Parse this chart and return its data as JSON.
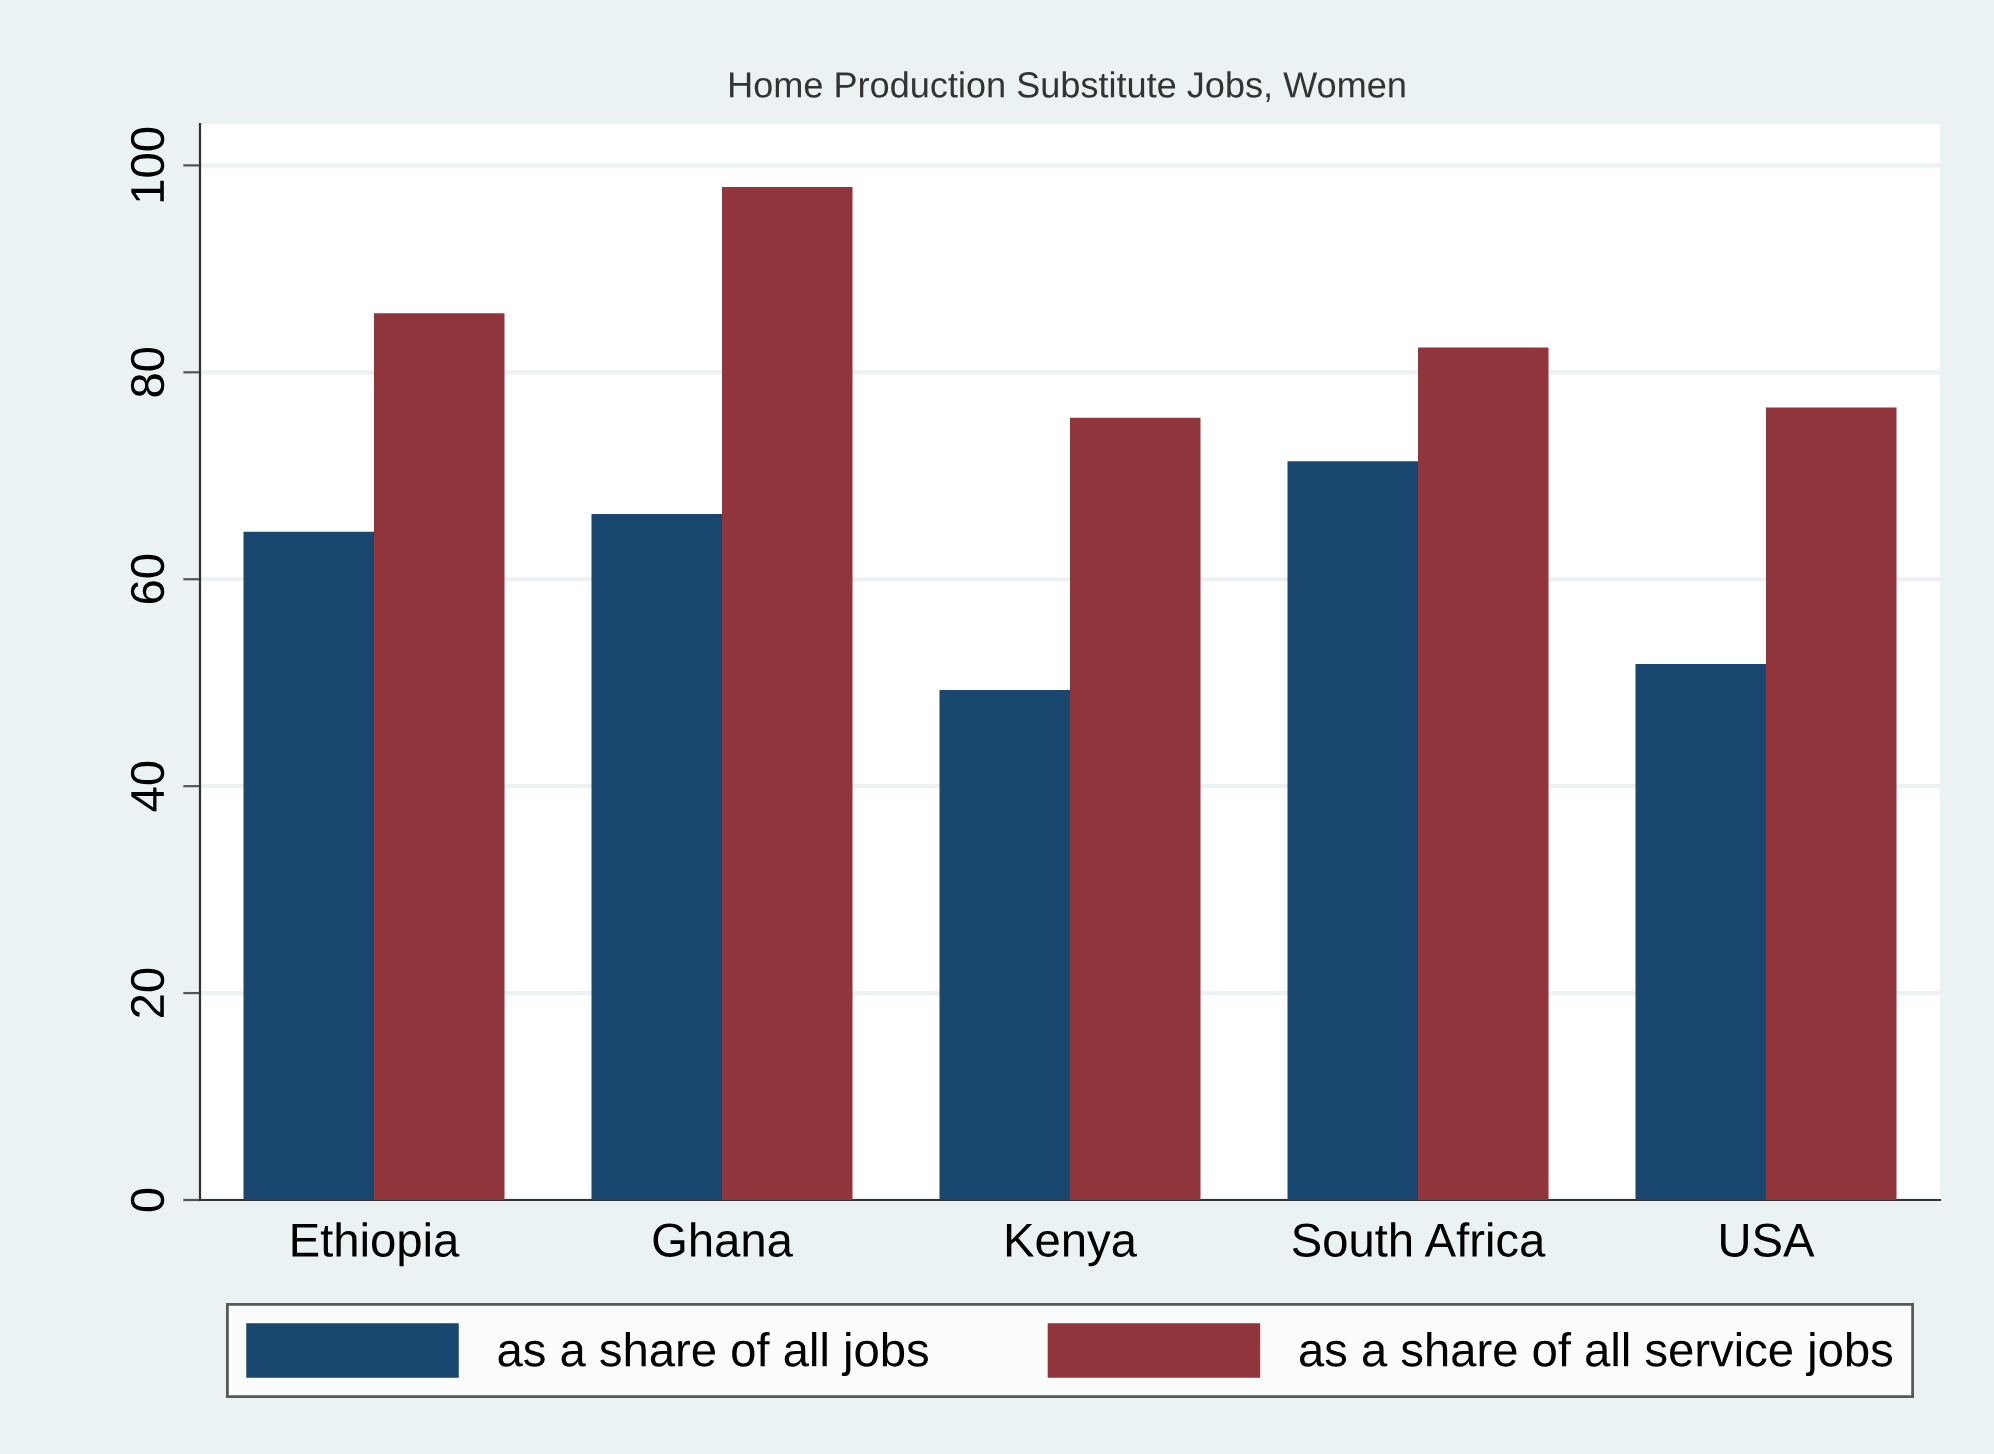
{
  "chart_data": {
    "type": "bar",
    "title": "Home Production Substitute Jobs, Women",
    "categories": [
      "Ethiopia",
      "Ghana",
      "Kenya",
      "South Africa",
      "USA"
    ],
    "series": [
      {
        "name": "as a share of all jobs",
        "color": "#1a476f",
        "values": [
          64.6,
          66.3,
          49.3,
          71.4,
          51.8
        ]
      },
      {
        "name": "as a share of all service jobs",
        "color": "#90353b",
        "values": [
          85.7,
          97.9,
          75.6,
          82.4,
          76.6
        ]
      }
    ],
    "ylim": [
      0,
      104
    ],
    "yticks": [
      0,
      20,
      40,
      60,
      80,
      100
    ],
    "grid": "y",
    "legend": "bottom"
  }
}
